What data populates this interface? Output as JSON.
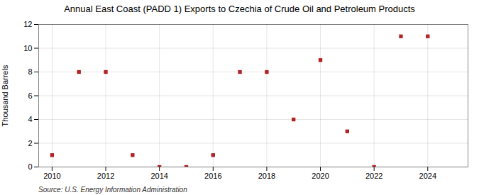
{
  "chart_data": {
    "type": "scatter",
    "title": "Annual East Coast (PADD 1) Exports to Czechia of Crude Oil and Petroleum Products",
    "ylabel": "Thousand Barrels",
    "source": "Source: U.S. Energy Information Administration",
    "x": [
      2010,
      2011,
      2012,
      2013,
      2014,
      2015,
      2016,
      2017,
      2018,
      2019,
      2020,
      2021,
      2022,
      2023,
      2024
    ],
    "values": [
      1,
      8,
      8,
      1,
      0,
      0,
      1,
      8,
      8,
      4,
      9,
      3,
      0,
      11,
      11
    ],
    "color": "#b22222",
    "marker": "square",
    "xlim": [
      2009.5,
      2025.5
    ],
    "xticks": [
      2010,
      2012,
      2014,
      2016,
      2018,
      2020,
      2022,
      2024
    ],
    "ylim": [
      0,
      12
    ],
    "yticks": [
      0,
      2,
      4,
      6,
      8,
      10,
      12
    ],
    "grid": true
  }
}
